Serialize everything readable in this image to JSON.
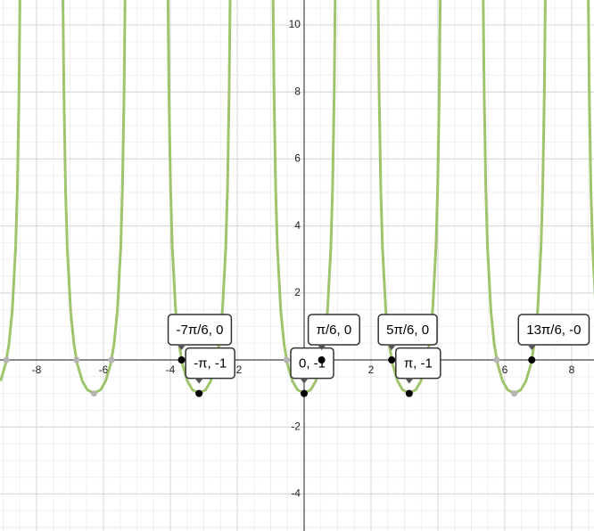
{
  "chart_data": {
    "type": "line",
    "xlim": [
      -9.093,
      8.667
    ],
    "ylim": [
      -5.106,
      10.745
    ],
    "xticks": [
      -8,
      -6,
      -4,
      -2,
      2,
      4,
      6,
      8
    ],
    "yticks": [
      -4,
      -2,
      2,
      4,
      6,
      8,
      10
    ],
    "grid": true,
    "minor_grid_subdivisions": 4,
    "series": [
      {
        "color": "#9fc46c",
        "x": [
          -9.075,
          -8.925,
          -8.825,
          -8.725,
          -8.625,
          -8.575,
          -8.525,
          -8.495,
          null,
          -7.213,
          -7.183,
          -7.133,
          -7.083,
          -6.983,
          -6.883,
          -6.783,
          -6.633,
          -6.483,
          -6.283,
          -6.083,
          -5.933,
          -5.783,
          -5.683,
          -5.583,
          -5.483,
          -5.433,
          -5.383,
          -5.353,
          null,
          -4.072,
          -4.042,
          -3.992,
          -3.942,
          -3.842,
          -3.742,
          -3.642,
          -3.492,
          -3.342,
          -3.142,
          -2.942,
          -2.792,
          -2.642,
          -2.542,
          -2.442,
          -2.342,
          -2.292,
          -2.242,
          -2.212,
          null,
          -0.93,
          -0.9,
          -0.85,
          -0.8,
          -0.7,
          -0.6,
          -0.5,
          -0.35,
          -0.2,
          0,
          0.2,
          0.35,
          0.5,
          0.6,
          0.7,
          0.8,
          0.85,
          0.9,
          0.93,
          null,
          2.212,
          2.242,
          2.292,
          2.342,
          2.442,
          2.542,
          2.642,
          2.792,
          2.942,
          3.142,
          3.342,
          3.492,
          3.642,
          3.742,
          3.842,
          3.942,
          3.992,
          4.042,
          4.072,
          null,
          5.353,
          5.383,
          5.433,
          5.483,
          5.583,
          5.683,
          5.783,
          5.933,
          6.083,
          6.283,
          6.483,
          6.633,
          6.783,
          6.883,
          6.983,
          7.083,
          7.133,
          7.183,
          7.213,
          null,
          8.495,
          8.525,
          8.575,
          8.625,
          8.725
        ],
        "values": [
          -0.628,
          -0.116,
          0.479,
          1.478,
          3.372,
          5.083,
          7.997,
          10.96,
          null,
          10.96,
          7.997,
          5.083,
          3.372,
          1.478,
          0.479,
          -0.116,
          -0.628,
          -0.889,
          -1,
          -0.889,
          -0.628,
          -0.116,
          0.479,
          1.478,
          3.372,
          5.083,
          7.997,
          10.96,
          null,
          10.96,
          7.997,
          5.083,
          3.372,
          1.478,
          0.479,
          -0.116,
          -0.628,
          -0.889,
          -1,
          -0.889,
          -0.628,
          -0.116,
          0.479,
          1.478,
          3.372,
          5.083,
          7.997,
          10.96,
          null,
          10.96,
          7.997,
          5.083,
          3.372,
          1.478,
          0.479,
          -0.116,
          -0.628,
          -0.889,
          -1,
          -0.889,
          -0.628,
          -0.116,
          0.479,
          1.478,
          3.372,
          5.083,
          7.997,
          10.96,
          null,
          10.96,
          7.997,
          5.083,
          3.372,
          1.478,
          0.479,
          -0.116,
          -0.628,
          -0.889,
          -1,
          -0.889,
          -0.628,
          -0.116,
          0.479,
          1.478,
          3.372,
          5.083,
          7.997,
          10.96,
          null,
          10.96,
          7.997,
          5.083,
          3.372,
          1.478,
          0.479,
          -0.116,
          -0.628,
          -0.889,
          -1,
          -0.889,
          -0.628,
          -0.116,
          0.479,
          1.478,
          3.372,
          5.083,
          7.997,
          10.96,
          null,
          10.96,
          7.997,
          5.083,
          3.372,
          1.478
        ]
      }
    ],
    "marked_points": {
      "color": "#b5b5b5",
      "x": [
        -8.901,
        -6.807,
        -6.283,
        -5.76,
        -2.618,
        -0.524,
        3.665,
        5.76,
        6.283
      ],
      "y": [
        0,
        0,
        -1,
        0,
        0,
        0,
        0,
        0,
        -1
      ]
    },
    "points_color": "#000000",
    "points": [
      {
        "label": "-7π/6, 0",
        "x": -3.665,
        "y": 0
      },
      {
        "label": "-π, -1",
        "x": -3.142,
        "y": -1
      },
      {
        "label": "0, -1",
        "x": 0,
        "y": -1
      },
      {
        "label": "π/6, 0",
        "x": 0.524,
        "y": 0
      },
      {
        "label": "5π/6, 0",
        "x": 2.618,
        "y": 0
      },
      {
        "label": "π, -1",
        "x": 3.142,
        "y": -1
      },
      {
        "label": "13π/6, -0",
        "x": 6.807,
        "y": 0
      }
    ]
  }
}
